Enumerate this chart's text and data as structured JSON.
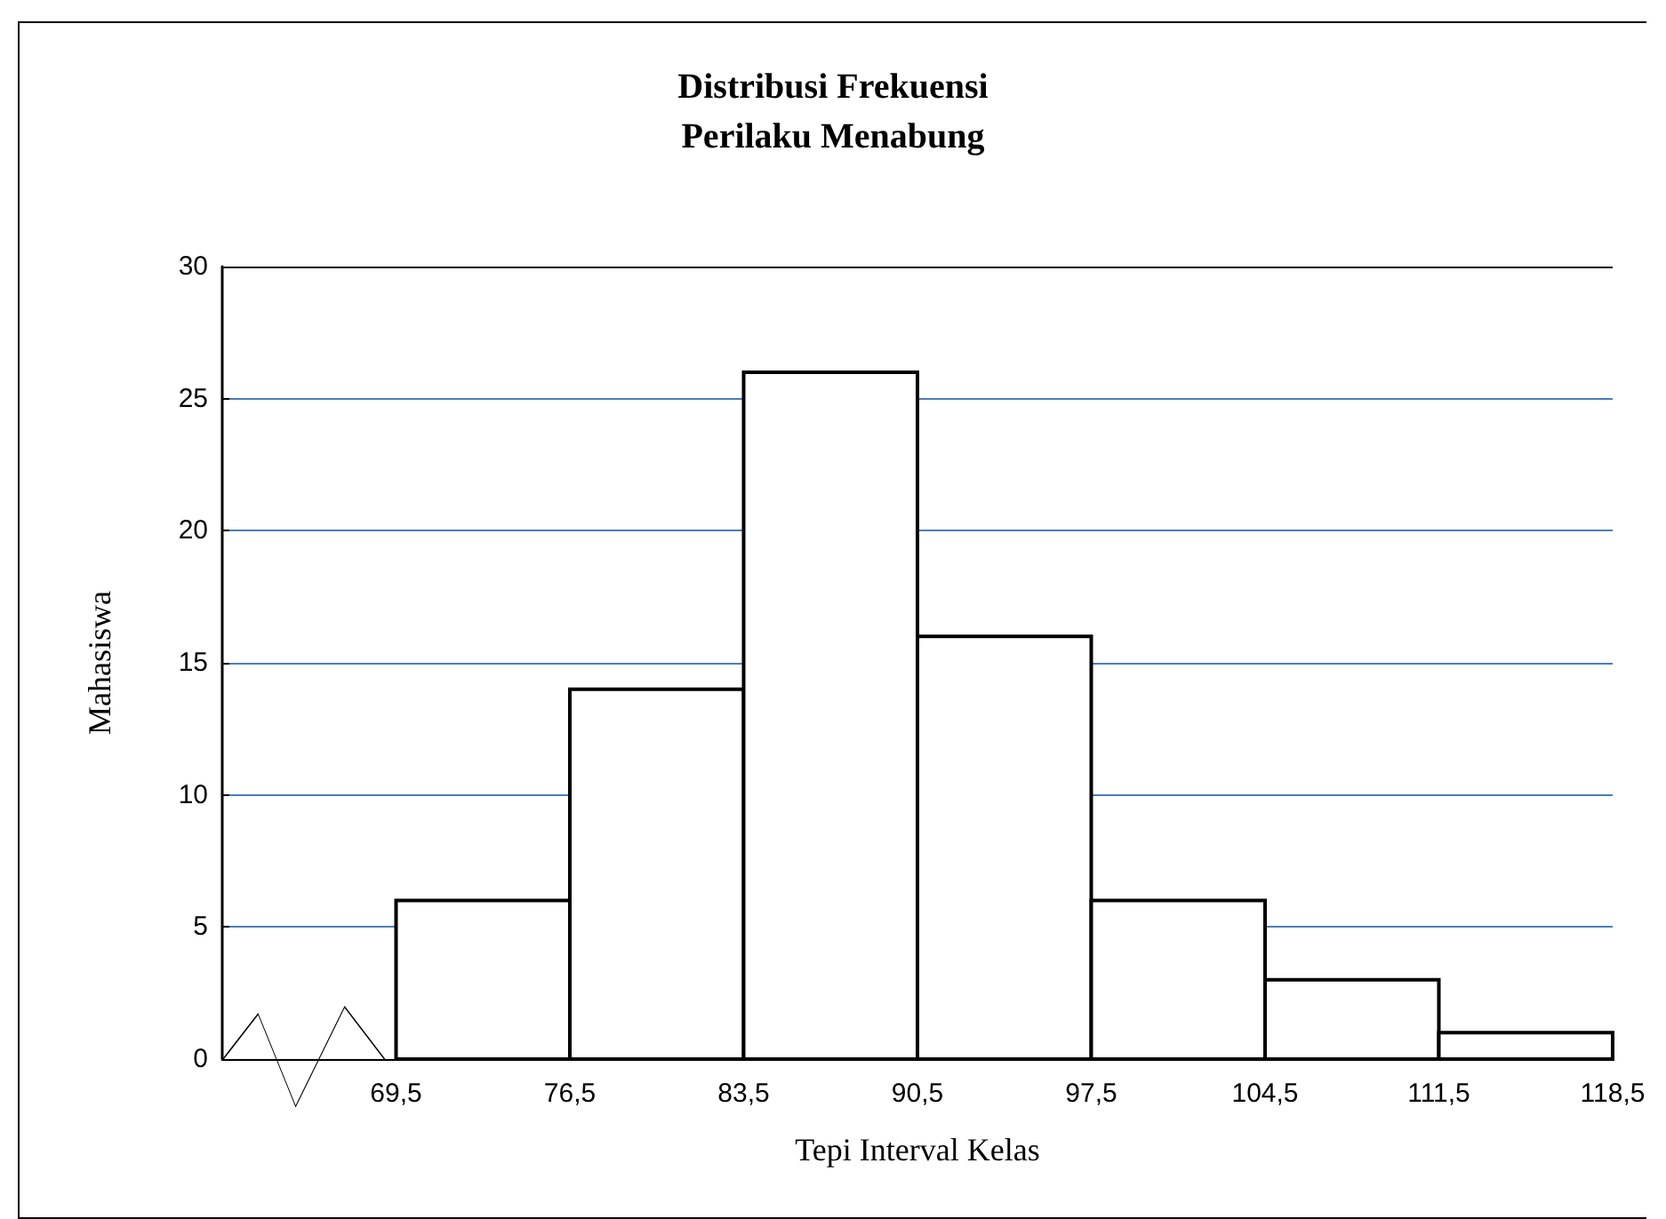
{
  "chart_data": {
    "type": "histogram",
    "title": "Distribusi Frekuensi\nPerilaku Menabung",
    "xlabel": "Tepi Interval Kelas",
    "ylabel": "Mahasiswa",
    "bins": [
      69.5,
      76.5,
      83.5,
      90.5,
      97.5,
      104.5,
      111.5,
      118.5
    ],
    "values": [
      6,
      14,
      26,
      16,
      6,
      3,
      1
    ],
    "color": "#ffffff",
    "xlim": [
      62.5,
      118.5
    ],
    "xticks": [
      {
        "value": 69.5,
        "label": "69,5"
      },
      {
        "value": 76.5,
        "label": "76,5"
      },
      {
        "value": 83.5,
        "label": "83,5"
      },
      {
        "value": 90.5,
        "label": "90,5"
      },
      {
        "value": 97.5,
        "label": "97,5"
      },
      {
        "value": 104.5,
        "label": "104,5"
      },
      {
        "value": 111.5,
        "label": "111,5"
      },
      {
        "value": 118.5,
        "label": "118,5"
      }
    ],
    "ylim": [
      0,
      30
    ],
    "yticks": [
      0,
      5,
      10,
      15,
      20,
      25,
      30
    ],
    "grid": "y"
  }
}
